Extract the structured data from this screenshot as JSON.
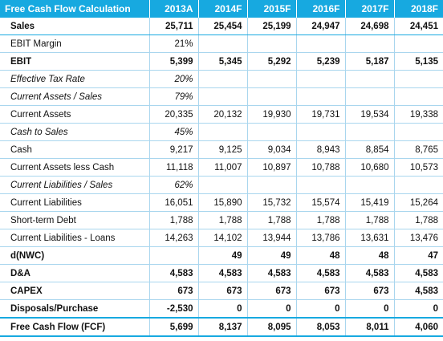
{
  "header": [
    "Free Cash Flow Calculation",
    "2013A",
    "2014F",
    "2015F",
    "2016F",
    "2017F",
    "2018F"
  ],
  "rows": [
    {
      "style": "bold sales",
      "cells": [
        "Sales",
        "25,711",
        "25,454",
        "25,199",
        "24,947",
        "24,698",
        "24,451"
      ]
    },
    {
      "style": "",
      "cells": [
        "EBIT Margin",
        "21%",
        "",
        "",
        "",
        "",
        ""
      ]
    },
    {
      "style": "bold",
      "cells": [
        "EBIT",
        "5,399",
        "5,345",
        "5,292",
        "5,239",
        "5,187",
        "5,135"
      ]
    },
    {
      "style": "italic",
      "cells": [
        "Effective Tax Rate",
        "20%",
        "",
        "",
        "",
        "",
        ""
      ]
    },
    {
      "style": "italic",
      "cells": [
        "Current Assets / Sales",
        "79%",
        "",
        "",
        "",
        "",
        ""
      ]
    },
    {
      "style": "",
      "cells": [
        "Current Assets",
        "20,335",
        "20,132",
        "19,930",
        "19,731",
        "19,534",
        "19,338"
      ]
    },
    {
      "style": "italic",
      "cells": [
        "Cash to Sales",
        "45%",
        "",
        "",
        "",
        "",
        ""
      ]
    },
    {
      "style": "",
      "cells": [
        "Cash",
        "9,217",
        "9,125",
        "9,034",
        "8,943",
        "8,854",
        "8,765"
      ]
    },
    {
      "style": "",
      "cells": [
        "Current Assets less Cash",
        "11,118",
        "11,007",
        "10,897",
        "10,788",
        "10,680",
        "10,573"
      ]
    },
    {
      "style": "italic",
      "cells": [
        "Current Liabilities / Sales",
        "62%",
        "",
        "",
        "",
        "",
        ""
      ]
    },
    {
      "style": "",
      "cells": [
        "Current Liabilities",
        "16,051",
        "15,890",
        "15,732",
        "15,574",
        "15,419",
        "15,264"
      ]
    },
    {
      "style": "",
      "cells": [
        "Short-term Debt",
        "1,788",
        "1,788",
        "1,788",
        "1,788",
        "1,788",
        "1,788"
      ]
    },
    {
      "style": "",
      "cells": [
        "Current Liabilities - Loans",
        "14,263",
        "14,102",
        "13,944",
        "13,786",
        "13,631",
        "13,476"
      ]
    },
    {
      "style": "bold",
      "cells": [
        "d(NWC)",
        "",
        "49",
        "49",
        "48",
        "48",
        "47"
      ]
    },
    {
      "style": "bold",
      "cells": [
        "D&A",
        "4,583",
        "4,583",
        "4,583",
        "4,583",
        "4,583",
        "4,583"
      ]
    },
    {
      "style": "bold",
      "cells": [
        "CAPEX",
        "673",
        "673",
        "673",
        "673",
        "673",
        "4,583"
      ]
    },
    {
      "style": "bold",
      "cells": [
        "Disposals/Purchase",
        "-2,530",
        "0",
        "0",
        "0",
        "0",
        "0"
      ]
    },
    {
      "style": "total",
      "cells": [
        "Free Cash Flow (FCF)",
        "5,699",
        "8,137",
        "8,095",
        "8,053",
        "8,011",
        "4,060"
      ]
    }
  ]
}
